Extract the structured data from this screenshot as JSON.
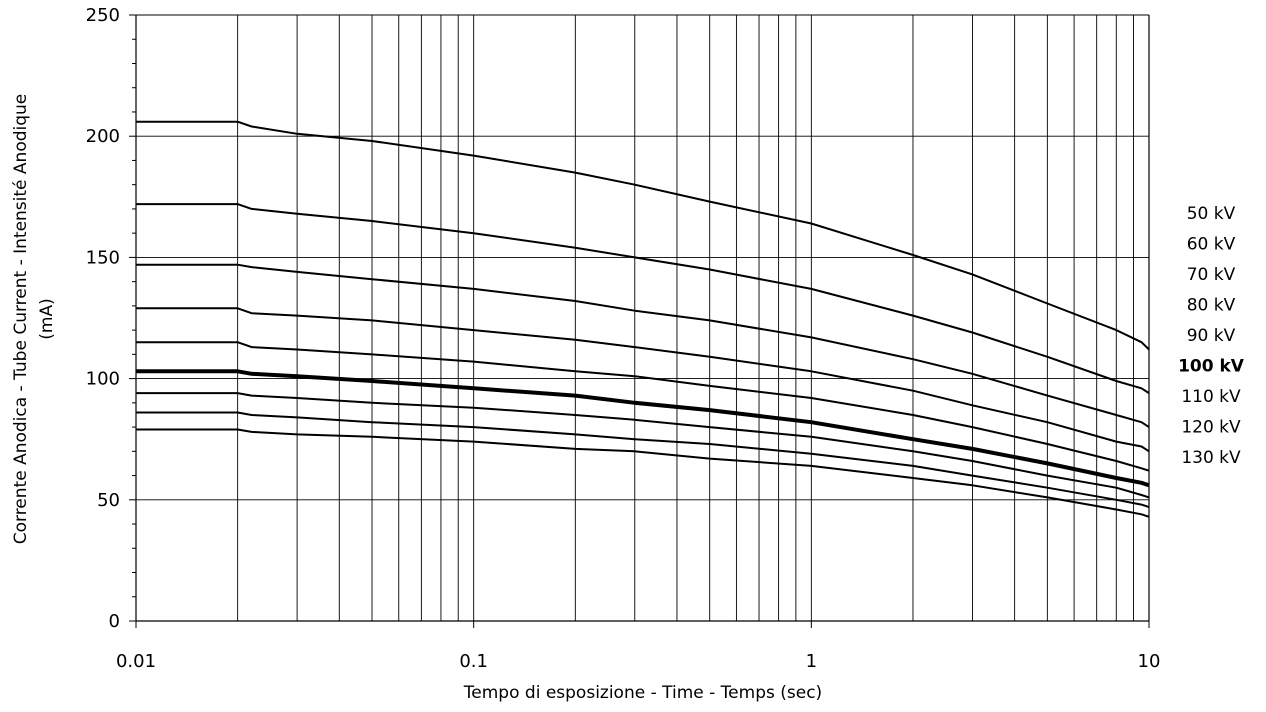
{
  "chart_data": {
    "type": "line",
    "xscale": "log",
    "xlim": [
      0.01,
      10
    ],
    "ylim": [
      0,
      250
    ],
    "grid": true,
    "xlabel": "Tempo di esposizione - Time - Temps  (sec)",
    "ylabel_line1": "Corrente Anodica - Tube Current - Intensité Anodique",
    "ylabel_line2": "(mA)",
    "x_ticks": [
      {
        "value": 0.01,
        "label": "0.01"
      },
      {
        "value": 0.1,
        "label": "0.1"
      },
      {
        "value": 1,
        "label": "1"
      },
      {
        "value": 10,
        "label": "10"
      }
    ],
    "y_ticks": [
      {
        "value": 0,
        "label": "0"
      },
      {
        "value": 50,
        "label": "50"
      },
      {
        "value": 100,
        "label": "100"
      },
      {
        "value": 150,
        "label": "150"
      },
      {
        "value": 200,
        "label": "200"
      },
      {
        "value": 250,
        "label": "250"
      }
    ],
    "legend_placement": "right",
    "x": [
      0.01,
      0.02,
      0.022,
      0.03,
      0.05,
      0.1,
      0.2,
      0.3,
      0.5,
      1,
      2,
      3,
      5,
      8,
      9.5,
      10
    ],
    "series": [
      {
        "name": "50 kV",
        "bold": false,
        "values": [
          206,
          206,
          204,
          201,
          198,
          192,
          185,
          180,
          173,
          164,
          151,
          143,
          131,
          120,
          115,
          112
        ]
      },
      {
        "name": "60 kV",
        "bold": false,
        "values": [
          172,
          172,
          170,
          168,
          165,
          160,
          154,
          150,
          145,
          137,
          126,
          119,
          109,
          99,
          96,
          94
        ]
      },
      {
        "name": "70 kV",
        "bold": false,
        "values": [
          147,
          147,
          146,
          144,
          141,
          137,
          132,
          128,
          124,
          117,
          108,
          102,
          93,
          85,
          82,
          80
        ]
      },
      {
        "name": "80 kV",
        "bold": false,
        "values": [
          129,
          129,
          127,
          126,
          124,
          120,
          116,
          113,
          109,
          103,
          95,
          89,
          82,
          74,
          72,
          70
        ]
      },
      {
        "name": "90 kV",
        "bold": false,
        "values": [
          115,
          115,
          113,
          112,
          110,
          107,
          103,
          101,
          97,
          92,
          85,
          80,
          73,
          66,
          63,
          62
        ]
      },
      {
        "name": "100 kV",
        "bold": true,
        "values": [
          103,
          103,
          102,
          101,
          99,
          96,
          93,
          90,
          87,
          82,
          75,
          71,
          65,
          59,
          57,
          56
        ]
      },
      {
        "name": "110 kV",
        "bold": false,
        "values": [
          94,
          94,
          93,
          92,
          90,
          88,
          85,
          83,
          80,
          76,
          70,
          66,
          60,
          55,
          52,
          51
        ]
      },
      {
        "name": "120 kV",
        "bold": false,
        "values": [
          86,
          86,
          85,
          84,
          82,
          80,
          77,
          75,
          73,
          69,
          64,
          60,
          55,
          50,
          48,
          47
        ]
      },
      {
        "name": "130 kV",
        "bold": false,
        "values": [
          79,
          79,
          78,
          77,
          76,
          74,
          71,
          70,
          67,
          64,
          59,
          56,
          51,
          46,
          44,
          43
        ]
      }
    ]
  }
}
